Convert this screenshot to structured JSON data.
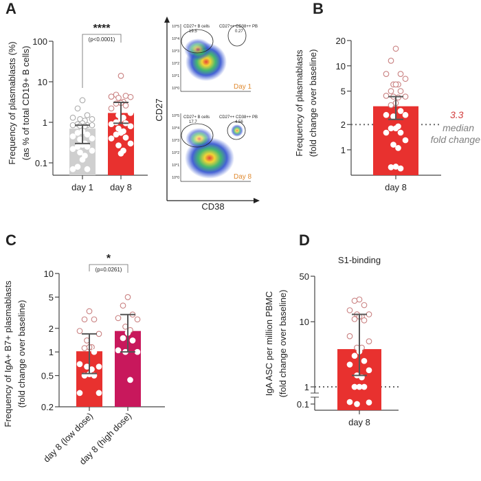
{
  "panels": {
    "A": "A",
    "B": "B",
    "C": "C",
    "D": "D"
  },
  "flow": {
    "y_axis_label": "CD27",
    "x_axis_label": "CD38",
    "plots": [
      {
        "day_label": "Day 1",
        "gate1_label": "CD27+ B cells",
        "gate1_value": "19.5",
        "gate2_label": "CD27++ CD38++ PB",
        "gate2_value": "0.27"
      },
      {
        "day_label": "Day 8",
        "gate1_label": "CD27+ B cells",
        "gate1_value": "17.7",
        "gate2_label": "CD27++ CD38++ PB",
        "gate2_value": "4.56"
      }
    ],
    "tick_labels": [
      "10^5",
      "10^4",
      "10^3",
      "10^2",
      "10^1",
      "10^0"
    ]
  },
  "colors": {
    "gray": "#cfcfcf",
    "red": "#e8312f",
    "magenta": "#c8185c",
    "median_red": "#d23a3a",
    "median_gray": "#808080"
  },
  "chart_data": [
    {
      "id": "A",
      "type": "bar",
      "yscale": "log",
      "ylim": [
        0.05,
        100
      ],
      "yticks": [
        {
          "v": 100,
          "label": "100"
        },
        {
          "v": 10,
          "label": "10"
        },
        {
          "v": 1,
          "label": "1"
        },
        {
          "v": 0.1,
          "label": "0.1"
        }
      ],
      "ylabel": [
        "Frequency of plasmablasts (%)",
        "(as % of total CD19+ B cells)"
      ],
      "categories": [
        "day 1",
        "day 8"
      ],
      "values": [
        0.7,
        1.7
      ],
      "error": [
        [
          0.3,
          0.85
        ],
        [
          0.95,
          3.1
        ]
      ],
      "bar_colors": [
        "#cfcfcf",
        "#e8312f"
      ],
      "points": [
        [
          3.5,
          2.2,
          1.5,
          1.3,
          1.2,
          1.2,
          1.1,
          0.95,
          0.9,
          0.85,
          0.85,
          0.85,
          0.82,
          0.8,
          0.6,
          0.55,
          0.5,
          0.45,
          0.4,
          0.38,
          0.3,
          0.28,
          0.25,
          0.25,
          0.22,
          0.2,
          0.18,
          0.15,
          0.12,
          0.08,
          0.07,
          0.07
        ],
        [
          14,
          4.8,
          4.5,
          4.3,
          4.2,
          4.0,
          3.2,
          3.0,
          2.9,
          2.6,
          2.2,
          1.7,
          1.5,
          1.3,
          1.2,
          1.0,
          0.95,
          0.9,
          0.8,
          0.7,
          0.6,
          0.55,
          0.5,
          0.42,
          0.4,
          0.3,
          0.27,
          0.2,
          0.17
        ]
      ],
      "significance": {
        "stars": "****",
        "p": "(p<0.0001)"
      }
    },
    {
      "id": "B",
      "type": "bar",
      "yscale": "log",
      "ylim": [
        0.55,
        20
      ],
      "yticks": [
        {
          "v": 20,
          "label": "20"
        },
        {
          "v": 10,
          "label": "10"
        },
        {
          "v": 5,
          "label": "5"
        },
        {
          "v": 2,
          "label": "2"
        },
        {
          "v": 1,
          "label": "1"
        }
      ],
      "ylabel": [
        "Frequency of plasmablasts",
        "(fold change over baseline)"
      ],
      "categories": [
        "day 8"
      ],
      "values": [
        3.3
      ],
      "error": [
        [
          2.3,
          4.3
        ]
      ],
      "bar_colors": [
        "#e8312f"
      ],
      "points": [
        [
          16,
          11.5,
          8,
          8,
          7,
          6,
          6,
          6,
          5,
          5,
          4.4,
          4.3,
          4.3,
          4.2,
          3.6,
          3.4,
          2.9,
          2.6,
          2.6,
          2.5,
          1.9,
          1.8,
          1.8,
          1.6,
          1.6,
          1.3,
          1.15,
          1.05,
          0.63,
          0.62,
          0.6
        ]
      ],
      "reference_line": 2,
      "annotation": {
        "value": "3.3",
        "line1": "median",
        "line2": "fold change"
      }
    },
    {
      "id": "C",
      "type": "bar",
      "yscale": "log",
      "ylim": [
        0.2,
        10
      ],
      "yticks": [
        {
          "v": 10,
          "label": "10"
        },
        {
          "v": 5,
          "label": "5"
        },
        {
          "v": 2,
          "label": "2"
        },
        {
          "v": 1,
          "label": "1"
        },
        {
          "v": 0.5,
          "label": "0.5"
        },
        {
          "v": 0.2,
          "label": "0.2"
        }
      ],
      "ylabel": [
        "Frequency of IgA+ B7+ plasmablasts",
        "(fold change over baseline)"
      ],
      "categories": [
        "day 8 (low dose)",
        "day 8 (high dose)"
      ],
      "values": [
        1.02,
        1.85
      ],
      "error": [
        [
          0.53,
          1.7
        ],
        [
          1.0,
          3.0
        ]
      ],
      "bar_colors": [
        "#e8312f",
        "#c8185c"
      ],
      "points": [
        [
          3.3,
          2.6,
          2.6,
          1.85,
          1.7,
          1.4,
          1.15,
          1.15,
          1.12,
          1.0,
          0.7,
          0.65,
          0.65,
          0.6,
          0.52,
          0.5,
          0.5,
          0.3,
          0.3
        ],
        [
          5.0,
          3.9,
          3.0,
          2.7,
          2.6,
          2.1,
          1.9,
          1.75,
          1.5,
          1.4,
          1.05,
          1.0,
          1.0,
          0.44
        ]
      ],
      "significance": {
        "stars": "*",
        "p": "(p=0.0261)"
      }
    },
    {
      "id": "D",
      "type": "bar",
      "yscale": "log-broken",
      "title": "S1-binding",
      "ylim": [
        0.08,
        50
      ],
      "yticks": [
        {
          "v": 50,
          "label": "50"
        },
        {
          "v": 10,
          "label": "10"
        },
        {
          "v": 1,
          "label": "1"
        },
        {
          "v": 0.1,
          "label": "0.1"
        }
      ],
      "ylabel": [
        "IgA ASC per million PBMC",
        "(fold change over baseline)"
      ],
      "categories": [
        "day 8"
      ],
      "values": [
        3.8
      ],
      "error": [
        [
          1.5,
          13
        ]
      ],
      "bar_colors": [
        "#e8312f"
      ],
      "points": [
        [
          22,
          21,
          18,
          15,
          13,
          13,
          12,
          12,
          11,
          10.5,
          6,
          5,
          4,
          4,
          3.5,
          3,
          2.5,
          2.2,
          1.8,
          1.5,
          1.4,
          1.0,
          1.0,
          1.0,
          0.14,
          0.13,
          0.1
        ]
      ],
      "reference_line": 1
    }
  ]
}
